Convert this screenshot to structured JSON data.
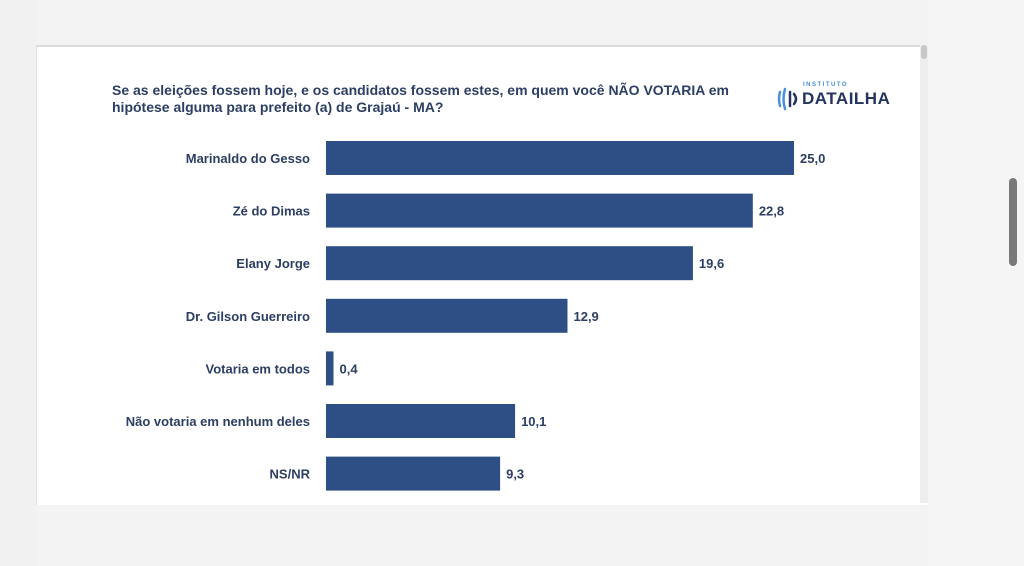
{
  "title": "Se as eleições fossem hoje, e os candidatos fossem estes, em quem você NÃO VOTARIA em hipótese alguma para prefeito (a) de Grajaú - MA?",
  "logo": {
    "top_text": "INSTITUTO",
    "main_text": "DATAILHA",
    "icon": "dataiIha-logo-icon"
  },
  "colors": {
    "bar": "#2e4f86",
    "text": "#2c3e63",
    "logo_accent": "#4a90d9"
  },
  "chart_data": {
    "type": "bar",
    "orientation": "horizontal",
    "categories": [
      "Marinaldo do Gesso",
      "Zé do Dimas",
      "Elany Jorge",
      "Dr. Gilson Guerreiro",
      "Votaria em todos",
      "Não votaria em nenhum deles",
      "NS/NR"
    ],
    "values": [
      25.0,
      22.8,
      19.6,
      12.9,
      0.4,
      10.1,
      9.3
    ],
    "value_labels": [
      "25,0",
      "22,8",
      "19,6",
      "12,9",
      "0,4",
      "10,1",
      "9,3"
    ],
    "xlim": [
      0,
      25
    ],
    "grid": false,
    "legend": "none"
  }
}
